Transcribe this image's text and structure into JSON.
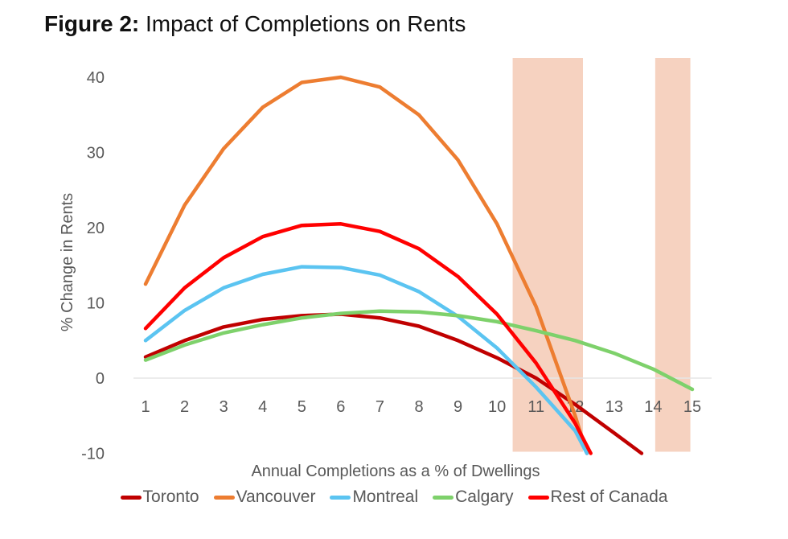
{
  "figure": {
    "label": "Figure 2:",
    "title": "Impact of Completions on Rents"
  },
  "chart_data": {
    "type": "line",
    "title": "Impact of Completions on Rents",
    "xlabel": "Annual Completions as a % of Dwellings",
    "ylabel": "% Change in Rents",
    "x": [
      1,
      2,
      3,
      4,
      5,
      6,
      7,
      8,
      9,
      10,
      11,
      12,
      13,
      14,
      15
    ],
    "xticks": [
      "1",
      "2",
      "3",
      "4",
      "5",
      "6",
      "7",
      "8",
      "9",
      "10",
      "11",
      "12",
      "13",
      "14",
      "15"
    ],
    "yticks": [
      "-10",
      "0",
      "10",
      "20",
      "30",
      "40"
    ],
    "ytick_values": [
      -10,
      0,
      10,
      20,
      30,
      40
    ],
    "xlim": [
      1,
      15
    ],
    "ylim": [
      -10,
      40
    ],
    "grid": false,
    "legend_position": "bottom",
    "shaded_regions": [
      {
        "x_start": 10.4,
        "x_end": 12.2,
        "color": "#F6D2C0"
      },
      {
        "x_start": 14.05,
        "x_end": 14.95,
        "color": "#F6D2C0"
      }
    ],
    "series": [
      {
        "name": "Toronto",
        "color": "#C00000",
        "points": [
          [
            1,
            2.8
          ],
          [
            2,
            5.0
          ],
          [
            3,
            6.8
          ],
          [
            4,
            7.8
          ],
          [
            5,
            8.3
          ],
          [
            6,
            8.5
          ],
          [
            7,
            8.0
          ],
          [
            8,
            6.9
          ],
          [
            9,
            5.0
          ],
          [
            10,
            2.7
          ],
          [
            11,
            0.0
          ],
          [
            12,
            -3.5
          ],
          [
            13,
            -7.3
          ],
          [
            13.7,
            -10
          ]
        ]
      },
      {
        "name": "Vancouver",
        "color": "#ED7D31",
        "points": [
          [
            1,
            12.5
          ],
          [
            2,
            23.0
          ],
          [
            3,
            30.5
          ],
          [
            4,
            36.0
          ],
          [
            5,
            39.3
          ],
          [
            6,
            40.0
          ],
          [
            7,
            38.7
          ],
          [
            8,
            35.0
          ],
          [
            9,
            29.0
          ],
          [
            10,
            20.5
          ],
          [
            11,
            9.5
          ],
          [
            12,
            -5.0
          ],
          [
            12.3,
            -10
          ]
        ]
      },
      {
        "name": "Montreal",
        "color": "#5BC4F1",
        "points": [
          [
            1,
            5.0
          ],
          [
            2,
            9.0
          ],
          [
            3,
            12.0
          ],
          [
            4,
            13.8
          ],
          [
            5,
            14.8
          ],
          [
            6,
            14.7
          ],
          [
            7,
            13.7
          ],
          [
            8,
            11.5
          ],
          [
            9,
            8.2
          ],
          [
            10,
            4.0
          ],
          [
            11,
            -1.2
          ],
          [
            12,
            -7.0
          ],
          [
            12.3,
            -10
          ]
        ]
      },
      {
        "name": "Calgary",
        "color": "#7ED16B",
        "points": [
          [
            1,
            2.4
          ],
          [
            2,
            4.4
          ],
          [
            3,
            6.0
          ],
          [
            4,
            7.1
          ],
          [
            5,
            8.0
          ],
          [
            6,
            8.6
          ],
          [
            7,
            8.9
          ],
          [
            8,
            8.8
          ],
          [
            9,
            8.3
          ],
          [
            10,
            7.5
          ],
          [
            11,
            6.3
          ],
          [
            12,
            5.0
          ],
          [
            13,
            3.3
          ],
          [
            14,
            1.2
          ],
          [
            15,
            -1.5
          ]
        ]
      },
      {
        "name": "Rest of Canada",
        "color": "#FF0000",
        "points": [
          [
            1,
            6.6
          ],
          [
            2,
            12.0
          ],
          [
            3,
            16.0
          ],
          [
            4,
            18.8
          ],
          [
            5,
            20.3
          ],
          [
            6,
            20.5
          ],
          [
            7,
            19.5
          ],
          [
            8,
            17.2
          ],
          [
            9,
            13.5
          ],
          [
            10,
            8.5
          ],
          [
            11,
            2.0
          ],
          [
            12,
            -6.0
          ],
          [
            12.4,
            -10
          ]
        ]
      }
    ]
  }
}
